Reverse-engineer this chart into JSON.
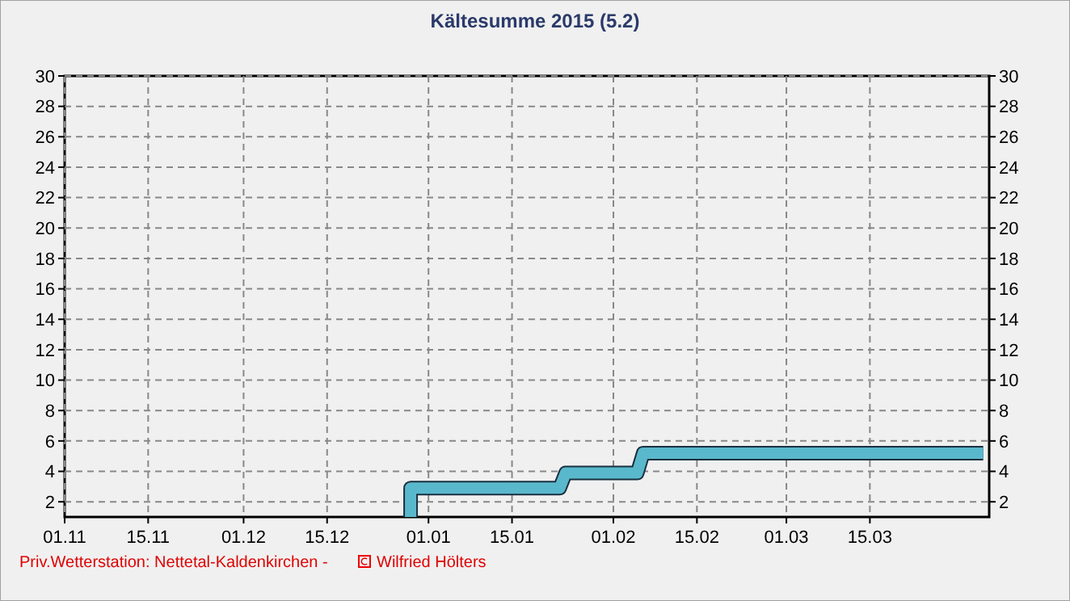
{
  "chart_data": {
    "type": "line",
    "title": "Kältesumme  2015  (5.2)",
    "series": [
      {
        "color": "#5ab8cc",
        "x": [
          "2015-12-29",
          "2015-12-29",
          "2016-01-23",
          "2016-01-24",
          "2016-02-05",
          "2016-02-06",
          "2016-04-03"
        ],
        "values": [
          1,
          2.9,
          2.9,
          3.9,
          3.9,
          5.2,
          5.2
        ]
      }
    ],
    "xlim": [
      "2015-11-01",
      "2016-04-04"
    ],
    "xticks": [
      {
        "value": "2015-11-01",
        "label": "01.11"
      },
      {
        "value": "2015-11-15",
        "label": "15.11"
      },
      {
        "value": "2015-12-01",
        "label": "01.12"
      },
      {
        "value": "2015-12-15",
        "label": "15.12"
      },
      {
        "value": "2016-01-01",
        "label": "01.01"
      },
      {
        "value": "2016-01-15",
        "label": "15.01"
      },
      {
        "value": "2016-02-01",
        "label": "01.02"
      },
      {
        "value": "2016-02-15",
        "label": "15.02"
      },
      {
        "value": "2016-03-01",
        "label": "01.03"
      },
      {
        "value": "2016-03-15",
        "label": "15.03"
      }
    ],
    "ylim": [
      1,
      30
    ],
    "yticks": [
      2,
      4,
      6,
      8,
      10,
      12,
      14,
      16,
      18,
      20,
      22,
      24,
      26,
      28,
      30
    ],
    "y2lim": [
      1,
      30
    ],
    "y2ticks": [
      2,
      4,
      6,
      8,
      10,
      12,
      14,
      16,
      18,
      20,
      22,
      24,
      26,
      28,
      30
    ],
    "grid": true,
    "line_style": "solid",
    "marker": "none",
    "annotations": [
      "Priv.Wetterstation: Nettetal-Kaldenkirchen   -",
      "Wilfried Hölters"
    ]
  }
}
